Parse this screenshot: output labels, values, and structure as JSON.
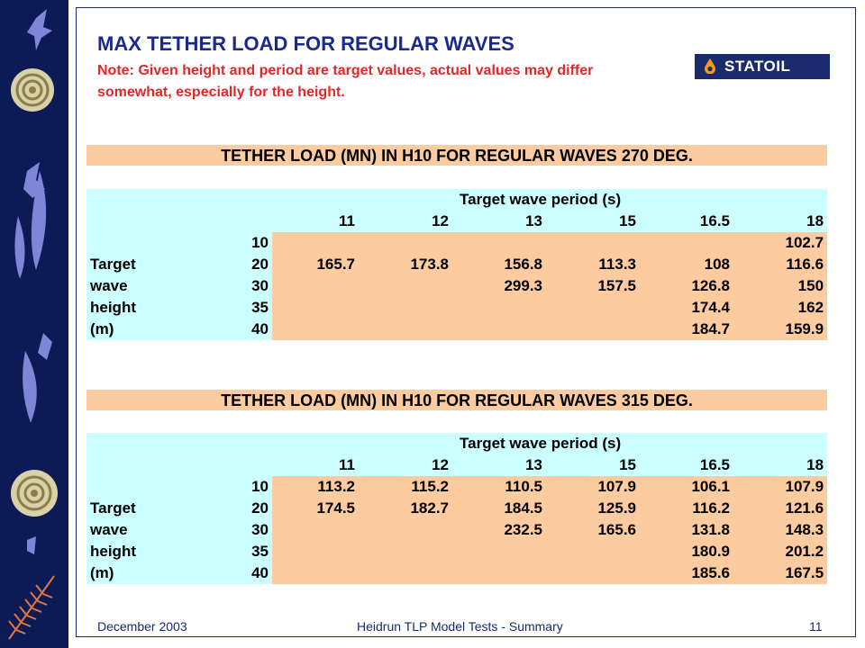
{
  "slide": {
    "title": "MAX TETHER LOAD FOR REGULAR WAVES",
    "note": "Note: Given height and period are target values, actual values may differ somewhat, especially for the height.",
    "logo_text": "STATOIL",
    "footer_left": "December 2003",
    "footer_center": "Heidrun TLP Model Tests - Summary",
    "footer_right": "11"
  },
  "colors": {
    "navy": "#0c1a56",
    "title": "#1a2a8c",
    "note": "#e2262a",
    "peach": "#fccba0",
    "cyan": "#ccffff"
  },
  "tables": [
    {
      "banner": "TETHER LOAD (MN) IN H10 FOR REGULAR WAVES 270 DEG.",
      "period_header": "Target wave period  (s)",
      "periods": [
        "11",
        "12",
        "13",
        "15",
        "16.5",
        "18"
      ],
      "rows": [
        {
          "label": "",
          "height": "10",
          "values": [
            "",
            "",
            "",
            "",
            "",
            "102.7"
          ]
        },
        {
          "label": "Target",
          "height": "20",
          "values": [
            "165.7",
            "173.8",
            "156.8",
            "113.3",
            "108",
            "116.6"
          ]
        },
        {
          "label": "wave",
          "height": "30",
          "values": [
            "",
            "",
            "299.3",
            "157.5",
            "126.8",
            "150"
          ]
        },
        {
          "label": "height",
          "height": "35",
          "values": [
            "",
            "",
            "",
            "",
            "174.4",
            "162"
          ]
        },
        {
          "label": "(m)",
          "height": "40",
          "values": [
            "",
            "",
            "",
            "",
            "184.7",
            "159.9"
          ]
        }
      ]
    },
    {
      "banner": "TETHER LOAD (MN) IN H10 FOR REGULAR WAVES 315 DEG.",
      "period_header": "Target wave period  (s)",
      "periods": [
        "11",
        "12",
        "13",
        "15",
        "16.5",
        "18"
      ],
      "rows": [
        {
          "label": "",
          "height": "10",
          "values": [
            "113.2",
            "115.2",
            "110.5",
            "107.9",
            "106.1",
            "107.9"
          ]
        },
        {
          "label": "Target",
          "height": "20",
          "values": [
            "174.5",
            "182.7",
            "184.5",
            "125.9",
            "116.2",
            "121.6"
          ]
        },
        {
          "label": "wave",
          "height": "30",
          "values": [
            "",
            "",
            "232.5",
            "165.6",
            "131.8",
            "148.3"
          ]
        },
        {
          "label": "height",
          "height": "35",
          "values": [
            "",
            "",
            "",
            "",
            "180.9",
            "201.2"
          ]
        },
        {
          "label": "(m)",
          "height": "40",
          "values": [
            "",
            "",
            "",
            "",
            "185.6",
            "167.5"
          ]
        }
      ]
    }
  ]
}
